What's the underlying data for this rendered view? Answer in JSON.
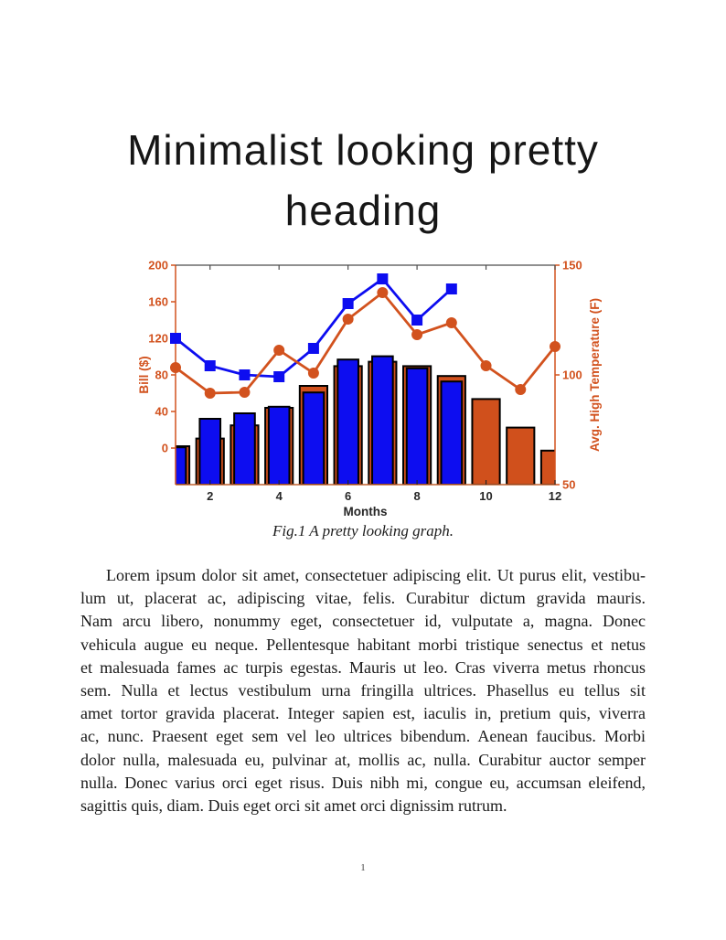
{
  "page": {
    "number": "1"
  },
  "heading": {
    "line1": "Minimalist looking pretty",
    "line2": "heading"
  },
  "figure": {
    "caption": "Fig.1 A pretty looking graph."
  },
  "chart_data": {
    "type": "combo-bar-line",
    "xlabel": "Months",
    "x_ticks": [
      2,
      4,
      6,
      8,
      10,
      12
    ],
    "x_range": [
      1,
      12
    ],
    "grid": false,
    "legend": null,
    "left_axis": {
      "label": "Bill ($)",
      "ticks": [
        0,
        40,
        80,
        120,
        160,
        200
      ],
      "range": [
        -40,
        200
      ],
      "color": "#d2521e"
    },
    "right_axis": {
      "label": "Avg. High Temperature (F)",
      "ticks": [
        50,
        100,
        150
      ],
      "range": [
        50,
        150
      ],
      "color": "#d2521e"
    },
    "colors": {
      "blue": "#0d0df0",
      "orange_line": "#d2521e",
      "orange_bar": "#d0501c",
      "bar_edge": "#000000",
      "top_spine": "#4d4d4d",
      "bottom_spine": "#c1602f",
      "x_text": "#262626"
    },
    "series": [
      {
        "name": "temperature-bars-orange",
        "type": "bar",
        "axis": "right",
        "color_key": "orange_bar",
        "bar_width": 0.8,
        "baseline": "plot-bottom",
        "months": [
          1,
          2,
          3,
          4,
          5,
          6,
          7,
          8,
          9,
          10,
          11,
          12
        ],
        "values": [
          67.5,
          71,
          77,
          85,
          95,
          104,
          106,
          104,
          99.5,
          89,
          76,
          65.5
        ]
      },
      {
        "name": "temperature-bars-blue",
        "type": "bar",
        "axis": "right",
        "color_key": "blue",
        "bar_width": 0.6,
        "baseline": "plot-bottom",
        "months": [
          1,
          2,
          3,
          4,
          5,
          6,
          7,
          8,
          9
        ],
        "values": [
          67,
          80,
          82.5,
          85.5,
          92,
          107,
          108.5,
          103,
          97
        ]
      },
      {
        "name": "bill-line-blue",
        "type": "line",
        "axis": "left",
        "color_key": "blue",
        "marker": "square",
        "months": [
          1,
          2,
          3,
          4,
          5,
          6,
          7,
          8,
          9
        ],
        "values": [
          120,
          90,
          80,
          78,
          109,
          158,
          185,
          140,
          174
        ]
      },
      {
        "name": "bill-line-orange",
        "type": "line",
        "axis": "left",
        "color_key": "orange_line",
        "marker": "circle",
        "months": [
          1,
          2,
          3,
          4,
          5,
          6,
          7,
          8,
          9,
          10,
          11,
          12
        ],
        "values": [
          88,
          60,
          61,
          107,
          82,
          141,
          170,
          124,
          137,
          90,
          64,
          111
        ]
      }
    ]
  },
  "body": {
    "lines": [
      "Lorem ipsum dolor sit amet, consectetuer adipiscing elit.  Ut purus elit, vestibu-",
      "lum ut, placerat ac, adipiscing vitae, felis.  Curabitur dictum gravida mauris.",
      "Nam arcu libero, nonummy eget, consectetuer id, vulputate a, magna.  Donec",
      "vehicula augue eu neque.  Pellentesque habitant morbi tristique senectus et netus",
      "et malesuada fames ac turpis egestas.  Mauris ut leo.  Cras viverra metus rhoncus",
      "sem.  Nulla et lectus vestibulum urna fringilla ultrices.  Phasellus eu tellus sit",
      "amet tortor gravida placerat.  Integer sapien est, iaculis in, pretium quis, viverra",
      "ac, nunc.  Praesent eget sem vel leo ultrices bibendum.  Aenean faucibus.  Morbi",
      "dolor nulla, malesuada eu, pulvinar at, mollis ac, nulla.  Curabitur auctor semper",
      "nulla.  Donec varius orci eget risus.  Duis nibh mi, congue eu, accumsan eleifend,",
      "sagittis quis, diam.  Duis eget orci sit amet orci dignissim rutrum."
    ]
  }
}
